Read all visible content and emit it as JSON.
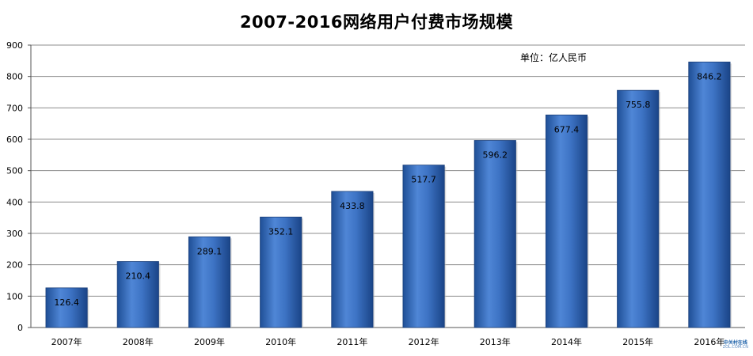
{
  "chart_data": {
    "type": "bar",
    "title": "2007-2016网络用户付费市场规模",
    "unit_note": "单位：亿人民币",
    "categories": [
      "2007年",
      "2008年",
      "2009年",
      "2010年",
      "2011年",
      "2012年",
      "2013年",
      "2014年",
      "2015年",
      "2016年"
    ],
    "values": [
      126.4,
      210.4,
      289.1,
      352.1,
      433.8,
      517.7,
      596.2,
      677.4,
      755.8,
      846.2
    ],
    "data_labels": [
      "126.4",
      "210.4",
      "289.1",
      "352.1",
      "433.8",
      "517.7",
      "596.2",
      "677.4",
      "755.8",
      "846.2"
    ],
    "ylim": [
      0,
      900
    ],
    "yticks": [
      0,
      100,
      200,
      300,
      400,
      500,
      600,
      700,
      800,
      900
    ],
    "ytick_labels": [
      "0",
      "100",
      "200",
      "300",
      "400",
      "500",
      "600",
      "700",
      "800",
      "900"
    ],
    "grid": true,
    "bar_color": "#2f65b3"
  },
  "watermark": {
    "line1": "中关村在线",
    "line2": "ZOL.COM.CN"
  }
}
